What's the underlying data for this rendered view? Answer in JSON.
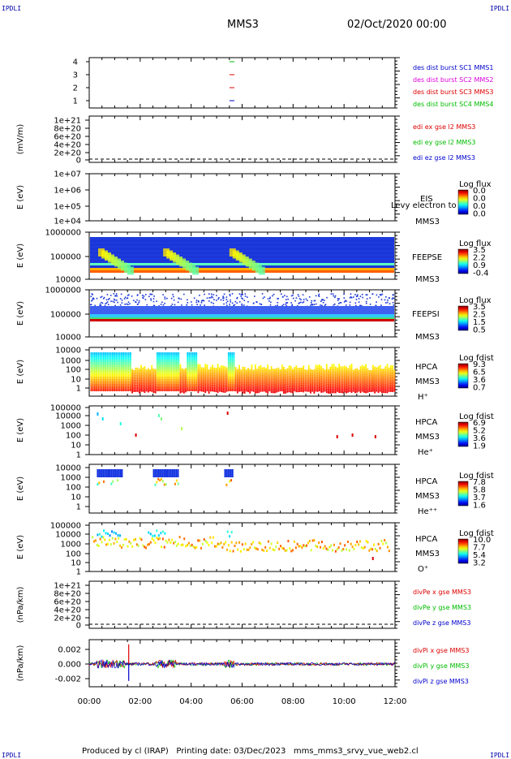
{
  "corners": {
    "top_left": "IPDLI",
    "top_right": "IPDLI",
    "bottom_left": "IPDLI",
    "bottom_right": "IPDLI"
  },
  "header": {
    "spacecraft": "MMS3",
    "date": "02/Oct/2020 00:00"
  },
  "footer": {
    "produced": "Produced by cl (IRAP)",
    "printing": "Printing date: 03/Dec/2023",
    "script": "mms_mms3_srvy_vue_web2.cl"
  },
  "colors": {
    "blue": "#0000cc",
    "red": "#dd0000",
    "green": "#00bb00",
    "magenta": "#dd00dd",
    "black": "#000000"
  },
  "chart_data": [
    {
      "id": "burst",
      "type": "scatter",
      "ylim": [
        0.5,
        4.5
      ],
      "yticks": [
        "4",
        "3",
        "2",
        "1"
      ],
      "legend": [
        {
          "text": "des dist burst SC1 MMS1",
          "color": "#0000cc"
        },
        {
          "text": "des dist burst SC2 MMS2",
          "color": "#dd00dd"
        },
        {
          "text": "des dist burst SC3 MMS3",
          "color": "#dd0000"
        },
        {
          "text": "des dist burst SC4 MMS4",
          "color": "#00bb00"
        }
      ],
      "x": [
        5.6,
        5.6,
        5.6,
        5.6
      ],
      "y": [
        4,
        3,
        2,
        1
      ]
    },
    {
      "id": "edi",
      "type": "line",
      "ylabel": "(mV/m)",
      "yticks": [
        "1e+21",
        "8e+20",
        "6e+20",
        "4e+20",
        "2e+20",
        "0"
      ],
      "legend": [
        {
          "text": "edi ex gse l2 MMS3",
          "color": "#dd0000"
        },
        {
          "text": "edi ey gse l2 MMS3",
          "color": "#00bb00"
        },
        {
          "text": "edi ez gse l2 MMS3",
          "color": "#0000cc"
        }
      ]
    },
    {
      "id": "eis",
      "type": "heatmap",
      "ylabel": "E (eV)",
      "yticks": [
        "1e+07",
        "1e+06",
        "1e+05",
        "1e+04"
      ],
      "labels": [
        "EIS",
        "Levy electron to",
        "MMS3"
      ],
      "cbar_title": "Log flux",
      "cbar_ticks": [
        "0.0",
        "0.0",
        "0.0",
        "0.0"
      ]
    },
    {
      "id": "feepse",
      "type": "heatmap",
      "ylabel": "E (eV)",
      "yticks": [
        "1000000",
        "100000",
        "10000"
      ],
      "labels": [
        "FEEPSE",
        "MMS3"
      ],
      "cbar_title": "Log flux",
      "cbar_ticks": [
        "3.5",
        "2.2",
        "0.9",
        "-0.4"
      ]
    },
    {
      "id": "feepsi",
      "type": "heatmap",
      "ylabel": "E (eV)",
      "yticks": [
        "1000000",
        "100000",
        "10000"
      ],
      "labels": [
        "FEEPSI",
        "MMS3"
      ],
      "cbar_title": "Log flux",
      "cbar_ticks": [
        "3.5",
        "2.5",
        "1.5",
        "0.5"
      ]
    },
    {
      "id": "hpca_h",
      "type": "heatmap",
      "ylabel": "E (eV)",
      "yticks": [
        "10000",
        "1000",
        "100",
        "10",
        "1"
      ],
      "labels": [
        "HPCA",
        "MMS3",
        "H⁺"
      ],
      "cbar_title": "Log fdist",
      "cbar_ticks": [
        "9.3",
        "6.5",
        "3.6",
        "0.7"
      ]
    },
    {
      "id": "hpca_he",
      "type": "heatmap",
      "ylabel": "E (eV)",
      "yticks": [
        "100000",
        "10000",
        "1000",
        "100",
        "10",
        "1"
      ],
      "labels": [
        "HPCA",
        "MMS3",
        "He⁺"
      ],
      "cbar_title": "Log fdist",
      "cbar_ticks": [
        "6.9",
        "5.2",
        "3.6",
        "1.9"
      ]
    },
    {
      "id": "hpca_hepp",
      "type": "heatmap",
      "ylabel": "E (eV)",
      "yticks": [
        "10000",
        "1000",
        "100",
        "10",
        "1"
      ],
      "labels": [
        "HPCA",
        "MMS3",
        "He⁺⁺"
      ],
      "cbar_title": "Log fdist",
      "cbar_ticks": [
        "7.8",
        "5.8",
        "3.7",
        "1.6"
      ]
    },
    {
      "id": "hpca_o",
      "type": "heatmap",
      "ylabel": "E (eV)",
      "yticks": [
        "100000",
        "10000",
        "1000",
        "100",
        "10",
        "1"
      ],
      "labels": [
        "HPCA",
        "MMS3",
        "O⁺"
      ],
      "cbar_title": "Log fdist",
      "cbar_ticks": [
        "10.0",
        "7.7",
        "5.4",
        "3.2"
      ]
    },
    {
      "id": "divpe",
      "type": "line",
      "ylabel": "(nPa/km)",
      "yticks": [
        "1e+21",
        "8e+20",
        "6e+20",
        "4e+20",
        "2e+20",
        "0"
      ],
      "legend": [
        {
          "text": "divPe x gse MMS3",
          "color": "#dd0000"
        },
        {
          "text": "divPe y gse MMS3",
          "color": "#00bb00"
        },
        {
          "text": "divPe z gse MMS3",
          "color": "#0000cc"
        }
      ]
    },
    {
      "id": "divpi",
      "type": "line",
      "ylabel": "(nPa/km)",
      "yticks": [
        "0.002",
        "0.000",
        "-0.002"
      ],
      "ylim": [
        -0.003,
        0.003
      ],
      "legend": [
        {
          "text": "divPi x gse MMS3",
          "color": "#dd0000"
        },
        {
          "text": "divPi y gse MMS3",
          "color": "#00bb00"
        },
        {
          "text": "divPi z gse MMS3",
          "color": "#0000cc"
        }
      ],
      "spikes": [
        {
          "x": 1.55,
          "y": 0.0028,
          "color": "#dd0000"
        },
        {
          "x": 1.55,
          "y": -0.0024,
          "color": "#0000cc"
        }
      ]
    }
  ],
  "xaxis": {
    "ticks": [
      "00:00",
      "02:00",
      "04:00",
      "06:00",
      "08:00",
      "10:00",
      "12:00"
    ],
    "xlim": [
      0,
      12
    ]
  }
}
